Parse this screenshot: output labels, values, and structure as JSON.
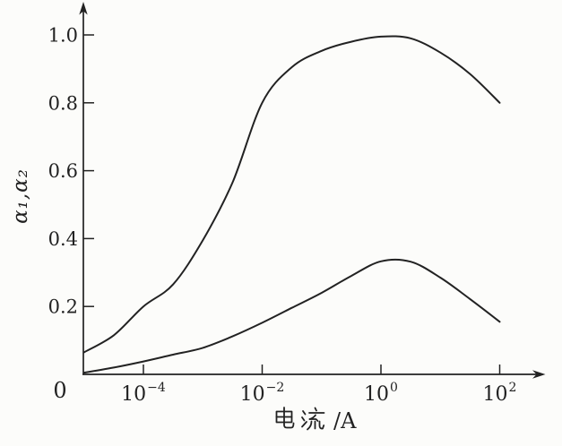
{
  "figure": {
    "background": "#fcfcfa",
    "ink_color": "#222222"
  },
  "chart_data": {
    "type": "line",
    "title": "",
    "xlabel": "电流/A",
    "ylabel": "α₁,α₂",
    "x_scale": "log",
    "x_range_log10": [
      -5,
      2.2
    ],
    "ylim": [
      0,
      1.05
    ],
    "grid": false,
    "legend": "none",
    "origin_label": "0",
    "x_ticks": [
      {
        "base": "10",
        "exp": "−4",
        "log10": -4,
        "value": 0.0001
      },
      {
        "base": "10",
        "exp": "−2",
        "log10": -2,
        "value": 0.01
      },
      {
        "base": "10",
        "exp": "0",
        "log10": 0,
        "value": 1
      },
      {
        "base": "10",
        "exp": "2",
        "log10": 2,
        "value": 100
      }
    ],
    "y_ticks": [
      {
        "label": "1.0",
        "value": 1.0
      },
      {
        "label": "0.8",
        "value": 0.8
      },
      {
        "label": "0.6",
        "value": 0.6
      },
      {
        "label": "0.4",
        "value": 0.4
      },
      {
        "label": "0.2",
        "value": 0.2
      }
    ],
    "series": [
      {
        "name": "alpha1",
        "label": "α₁",
        "log10_x": [
          -5,
          -4.5,
          -4,
          -3.5,
          -3,
          -2.5,
          -2,
          -1.5,
          -1,
          -0.5,
          0,
          0.5,
          1,
          1.5,
          2
        ],
        "values": [
          0.065,
          0.115,
          0.2,
          0.265,
          0.395,
          0.565,
          0.8,
          0.905,
          0.953,
          0.98,
          0.995,
          0.99,
          0.948,
          0.885,
          0.8
        ]
      },
      {
        "name": "alpha2",
        "label": "α₂",
        "log10_x": [
          -5,
          -4.5,
          -4,
          -3.5,
          -3,
          -2.5,
          -2,
          -1.5,
          -1,
          -0.5,
          0,
          0.5,
          1,
          1.5,
          2
        ],
        "values": [
          0.005,
          0.02,
          0.038,
          0.058,
          0.078,
          0.112,
          0.152,
          0.196,
          0.24,
          0.29,
          0.333,
          0.332,
          0.285,
          0.222,
          0.155
        ]
      }
    ]
  }
}
